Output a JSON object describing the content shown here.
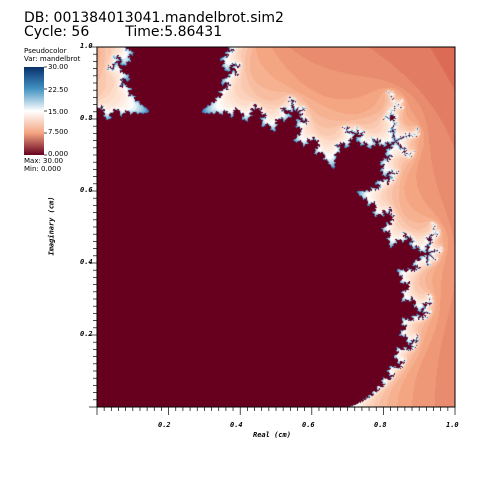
{
  "header": {
    "db_label": "DB: 001384013041.mandelbrot.sim2",
    "cycle_label": "Cycle: 56",
    "time_label": "Time:5.86431"
  },
  "legend": {
    "plot_type": "Pseudocolor",
    "var_label": "Var: mandelbrot",
    "ticks": [
      "30.00",
      "22.50",
      "15.00",
      "7.500",
      "0.000"
    ],
    "max_label": "Max: 30.00",
    "min_label": "Min: 0.000",
    "colormap": [
      "#08306b",
      "#2f7bb6",
      "#ffffff",
      "#f4a582",
      "#67001f"
    ]
  },
  "axes": {
    "xlabel": "Real (cm)",
    "ylabel": "Imaginary (cm)",
    "xticks": [
      "0.2",
      "0.4",
      "0.6",
      "0.8",
      "1.0"
    ],
    "yticks": [
      "0.2",
      "0.4",
      "0.6",
      "0.8",
      "1.0"
    ]
  },
  "chart_data": {
    "type": "heatmap",
    "description_field": "mandelbrot",
    "x_range": [
      0.0,
      1.0
    ],
    "y_range": [
      0.0,
      1.0
    ],
    "value_range": [
      0.0,
      30.0
    ],
    "xlabel": "Real (cm)",
    "ylabel": "Imaginary (cm)",
    "colors": {
      "inside": "#67001f",
      "far": "#b2182b",
      "mid": "#f4a582",
      "near": "#ffffff",
      "edge": "#2166ac"
    }
  }
}
